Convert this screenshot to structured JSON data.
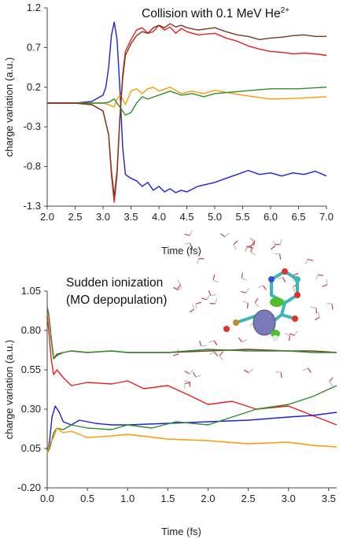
{
  "chart_data": [
    {
      "type": "line",
      "title": "Collision with 0.1 MeV He",
      "title_superscript": "2+",
      "xlabel": "Time (fs)",
      "ylabel": "charge variation (a.u.)",
      "xlim": [
        2.0,
        7.0
      ],
      "ylim": [
        -1.3,
        1.2
      ],
      "xticks": [
        "2.0",
        "2.5",
        "3.0",
        "3.5",
        "4.0",
        "4.5",
        "5.0",
        "5.5",
        "6.0",
        "6.5",
        "7.0"
      ],
      "yticks": [
        "1.2",
        "0.7",
        "0.2",
        "-0.3",
        "-0.8",
        "-1.3"
      ],
      "grid": false,
      "series": [
        {
          "color": "#1f1fe0",
          "x": [
            2.0,
            2.5,
            2.8,
            3.0,
            3.05,
            3.1,
            3.15,
            3.2,
            3.25,
            3.3,
            3.35,
            3.4,
            3.5,
            3.6,
            3.7,
            3.8,
            3.9,
            4.0,
            4.1,
            4.2,
            4.3,
            4.4,
            4.5,
            4.7,
            5.0,
            5.2,
            5.4,
            5.6,
            5.8,
            6.0,
            6.2,
            6.4,
            6.6,
            6.8,
            7.0
          ],
          "y": [
            0.0,
            0.0,
            0.02,
            0.1,
            0.2,
            0.45,
            0.85,
            1.02,
            0.8,
            0.2,
            -0.55,
            -0.9,
            -0.95,
            -0.98,
            -1.05,
            -1.0,
            -1.1,
            -1.05,
            -1.12,
            -1.08,
            -1.13,
            -1.1,
            -1.12,
            -1.05,
            -1.0,
            -0.95,
            -0.9,
            -0.85,
            -0.9,
            -0.88,
            -0.92,
            -0.88,
            -0.9,
            -0.86,
            -0.92
          ]
        },
        {
          "color": "#ff9900",
          "x": [
            2.0,
            2.5,
            2.8,
            3.0,
            3.1,
            3.2,
            3.25,
            3.3,
            3.35,
            3.4,
            3.5,
            3.6,
            3.7,
            3.8,
            3.9,
            4.0,
            4.2,
            4.4,
            4.6,
            4.8,
            5.0,
            5.5,
            6.0,
            6.5,
            7.0
          ],
          "y": [
            0.0,
            0.0,
            0.0,
            0.0,
            -0.02,
            -0.05,
            0.05,
            0.1,
            0.05,
            -0.02,
            0.15,
            0.18,
            0.12,
            0.18,
            0.2,
            0.15,
            0.2,
            0.12,
            0.15,
            0.12,
            0.16,
            0.1,
            0.05,
            0.06,
            0.08
          ]
        },
        {
          "color": "#2e8b2e",
          "x": [
            2.0,
            2.5,
            2.8,
            3.0,
            3.1,
            3.2,
            3.3,
            3.4,
            3.5,
            3.6,
            3.7,
            3.8,
            4.0,
            4.2,
            4.4,
            4.6,
            4.8,
            5.0,
            5.5,
            6.0,
            6.5,
            7.0
          ],
          "y": [
            0.0,
            0.0,
            0.0,
            0.0,
            0.01,
            0.05,
            -0.05,
            -0.15,
            -0.12,
            0.0,
            0.08,
            0.05,
            0.1,
            0.15,
            0.1,
            0.12,
            0.08,
            0.12,
            0.15,
            0.18,
            0.18,
            0.2
          ]
        },
        {
          "color": "#ee1c1c",
          "x": [
            2.0,
            2.5,
            2.8,
            3.0,
            3.1,
            3.15,
            3.2,
            3.25,
            3.3,
            3.35,
            3.4,
            3.5,
            3.6,
            3.7,
            3.8,
            3.9,
            4.0,
            4.1,
            4.2,
            4.3,
            4.4,
            4.5,
            4.7,
            5.0,
            5.2,
            5.4,
            5.6,
            5.8,
            6.0,
            6.2,
            6.4,
            6.6,
            6.8,
            7.0
          ],
          "y": [
            0.0,
            0.0,
            -0.02,
            -0.1,
            -0.4,
            -0.9,
            -1.25,
            -0.9,
            -0.2,
            0.35,
            0.65,
            0.8,
            0.92,
            0.95,
            0.88,
            0.9,
            0.98,
            0.92,
            0.96,
            0.88,
            0.94,
            0.9,
            0.86,
            0.88,
            0.82,
            0.78,
            0.72,
            0.68,
            0.65,
            0.64,
            0.62,
            0.63,
            0.62,
            0.6
          ]
        },
        {
          "color": "#7a3a1e",
          "x": [
            2.0,
            2.5,
            2.8,
            3.0,
            3.1,
            3.15,
            3.2,
            3.25,
            3.3,
            3.35,
            3.4,
            3.5,
            3.6,
            3.7,
            3.8,
            3.9,
            4.0,
            4.1,
            4.2,
            4.3,
            4.4,
            4.5,
            4.7,
            5.0,
            5.2,
            5.4,
            5.6,
            5.8,
            6.0,
            6.2,
            6.4,
            6.6,
            6.8,
            7.0
          ],
          "y": [
            0.0,
            0.0,
            -0.02,
            -0.1,
            -0.4,
            -0.85,
            -1.18,
            -0.85,
            -0.2,
            0.3,
            0.6,
            0.75,
            0.85,
            0.9,
            0.88,
            0.95,
            0.98,
            0.95,
            1.0,
            0.96,
            0.98,
            0.95,
            0.92,
            0.95,
            0.9,
            0.86,
            0.84,
            0.8,
            0.82,
            0.83,
            0.85,
            0.86,
            0.84,
            0.84
          ]
        }
      ]
    },
    {
      "type": "line",
      "title": "Sudden ionization",
      "subtitle": "(MO depopulation)",
      "xlabel": "Time (fs)",
      "ylabel": "charge variation (a.u.)",
      "xlim": [
        0.0,
        3.6
      ],
      "ylim": [
        -0.2,
        1.05
      ],
      "xticks": [
        "0.0",
        "0.5",
        "1.0",
        "1.5",
        "2.0",
        "2.5",
        "3.0",
        "3.5"
      ],
      "yticks": [
        "1.05",
        "0.80",
        "0.55",
        "0.30",
        "0.05",
        "-0.20"
      ],
      "grid": false,
      "series": [
        {
          "color": "#7a3a1e",
          "x": [
            0.0,
            0.02,
            0.05,
            0.08,
            0.12,
            0.2,
            0.3,
            0.5,
            0.8,
            1.0,
            1.5,
            2.0,
            2.5,
            3.0,
            3.3,
            3.6
          ],
          "y": [
            0.95,
            0.9,
            0.75,
            0.62,
            0.65,
            0.66,
            0.67,
            0.66,
            0.67,
            0.66,
            0.66,
            0.67,
            0.68,
            0.67,
            0.67,
            0.66
          ]
        },
        {
          "color": "#2e8b2e",
          "x": [
            0.0,
            0.02,
            0.05,
            0.08,
            0.12,
            0.2,
            0.3,
            0.5,
            0.8,
            1.0,
            1.5,
            2.0,
            2.5,
            3.0,
            3.3,
            3.6
          ],
          "y": [
            0.95,
            0.9,
            0.75,
            0.62,
            0.64,
            0.66,
            0.67,
            0.66,
            0.67,
            0.66,
            0.66,
            0.68,
            0.67,
            0.67,
            0.66,
            0.66
          ]
        },
        {
          "color": "#ee1c1c",
          "x": [
            0.0,
            0.02,
            0.05,
            0.08,
            0.12,
            0.2,
            0.3,
            0.5,
            0.8,
            1.0,
            1.2,
            1.5,
            1.8,
            2.0,
            2.3,
            2.6,
            3.0,
            3.3,
            3.6
          ],
          "y": [
            0.9,
            0.8,
            0.62,
            0.52,
            0.55,
            0.5,
            0.45,
            0.47,
            0.46,
            0.48,
            0.43,
            0.45,
            0.38,
            0.33,
            0.35,
            0.3,
            0.32,
            0.26,
            0.2
          ]
        },
        {
          "color": "#1f1fe0",
          "x": [
            0.0,
            0.03,
            0.06,
            0.1,
            0.15,
            0.2,
            0.3,
            0.4,
            0.6,
            0.8,
            1.0,
            1.5,
            2.0,
            2.5,
            3.0,
            3.3,
            3.6
          ],
          "y": [
            0.02,
            0.1,
            0.25,
            0.32,
            0.28,
            0.22,
            0.2,
            0.23,
            0.21,
            0.2,
            0.2,
            0.21,
            0.22,
            0.23,
            0.25,
            0.26,
            0.28
          ]
        },
        {
          "color": "#2e8b2e",
          "x": [
            0.0,
            0.03,
            0.08,
            0.12,
            0.2,
            0.3,
            0.5,
            0.8,
            1.0,
            1.3,
            1.6,
            2.0,
            2.3,
            2.6,
            3.0,
            3.3,
            3.6
          ],
          "y": [
            0.02,
            0.05,
            0.15,
            0.18,
            0.17,
            0.2,
            0.18,
            0.17,
            0.2,
            0.18,
            0.22,
            0.2,
            0.25,
            0.3,
            0.33,
            0.38,
            0.45
          ]
        },
        {
          "color": "#ff9900",
          "x": [
            0.0,
            0.03,
            0.08,
            0.12,
            0.2,
            0.3,
            0.5,
            0.8,
            1.0,
            1.5,
            2.0,
            2.5,
            3.0,
            3.3,
            3.6
          ],
          "y": [
            0.02,
            0.08,
            0.12,
            0.18,
            0.15,
            0.16,
            0.12,
            0.13,
            0.14,
            0.11,
            0.1,
            0.08,
            0.09,
            0.07,
            0.06
          ]
        }
      ]
    }
  ]
}
